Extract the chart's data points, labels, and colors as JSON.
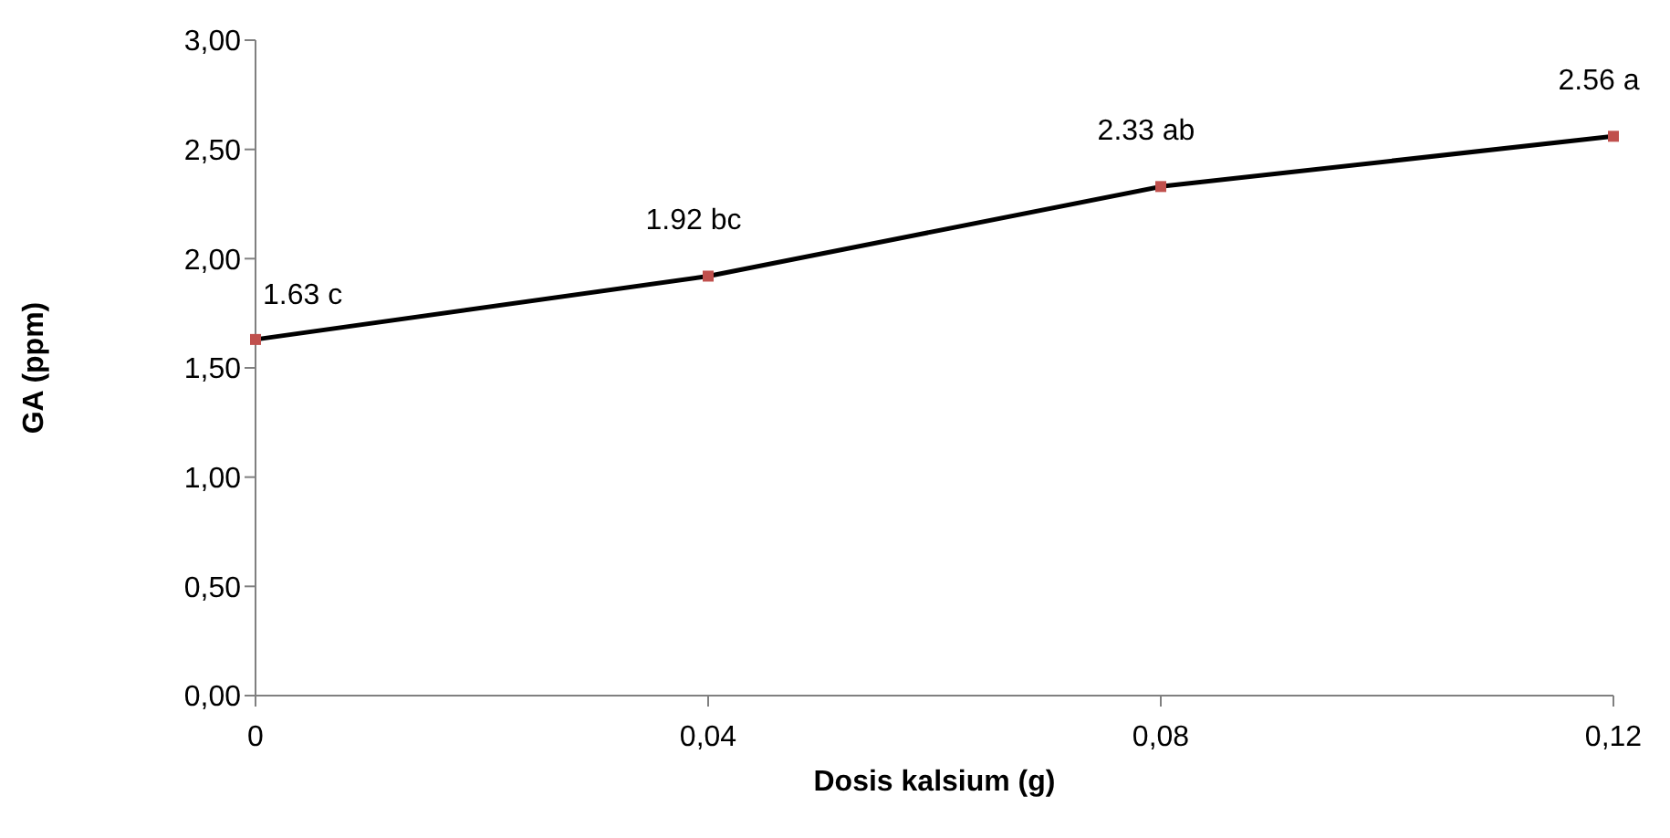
{
  "chart_data": {
    "type": "line",
    "xlabel": "Dosis kalsium (g)",
    "ylabel": "GA (ppm)",
    "categories": [
      "0",
      "0,04",
      "0,08",
      "0,12"
    ],
    "series": [
      {
        "color": "#000000",
        "colors": [
          "#c0504d",
          "#c0504d",
          "#c0504d",
          "#c0504d"
        ],
        "values": [
          1.63,
          1.92,
          2.33,
          2.56
        ],
        "value_labels": [
          "1.63 c",
          "1.92 bc",
          "2.33 ab",
          "2.56 a"
        ]
      }
    ],
    "ylim": [
      0,
      3
    ],
    "yticks": [
      {
        "value": 0,
        "label": "0,00"
      },
      {
        "value": 0.5,
        "label": "0,50"
      },
      {
        "value": 1,
        "label": "1,00"
      },
      {
        "value": 1.5,
        "label": "1,50"
      },
      {
        "value": 2,
        "label": "2,00"
      },
      {
        "value": 2.5,
        "label": "2,50"
      },
      {
        "value": 3,
        "label": "3,00"
      }
    ],
    "marker": "square",
    "line_style": "solid",
    "grid": false,
    "legend": false
  }
}
